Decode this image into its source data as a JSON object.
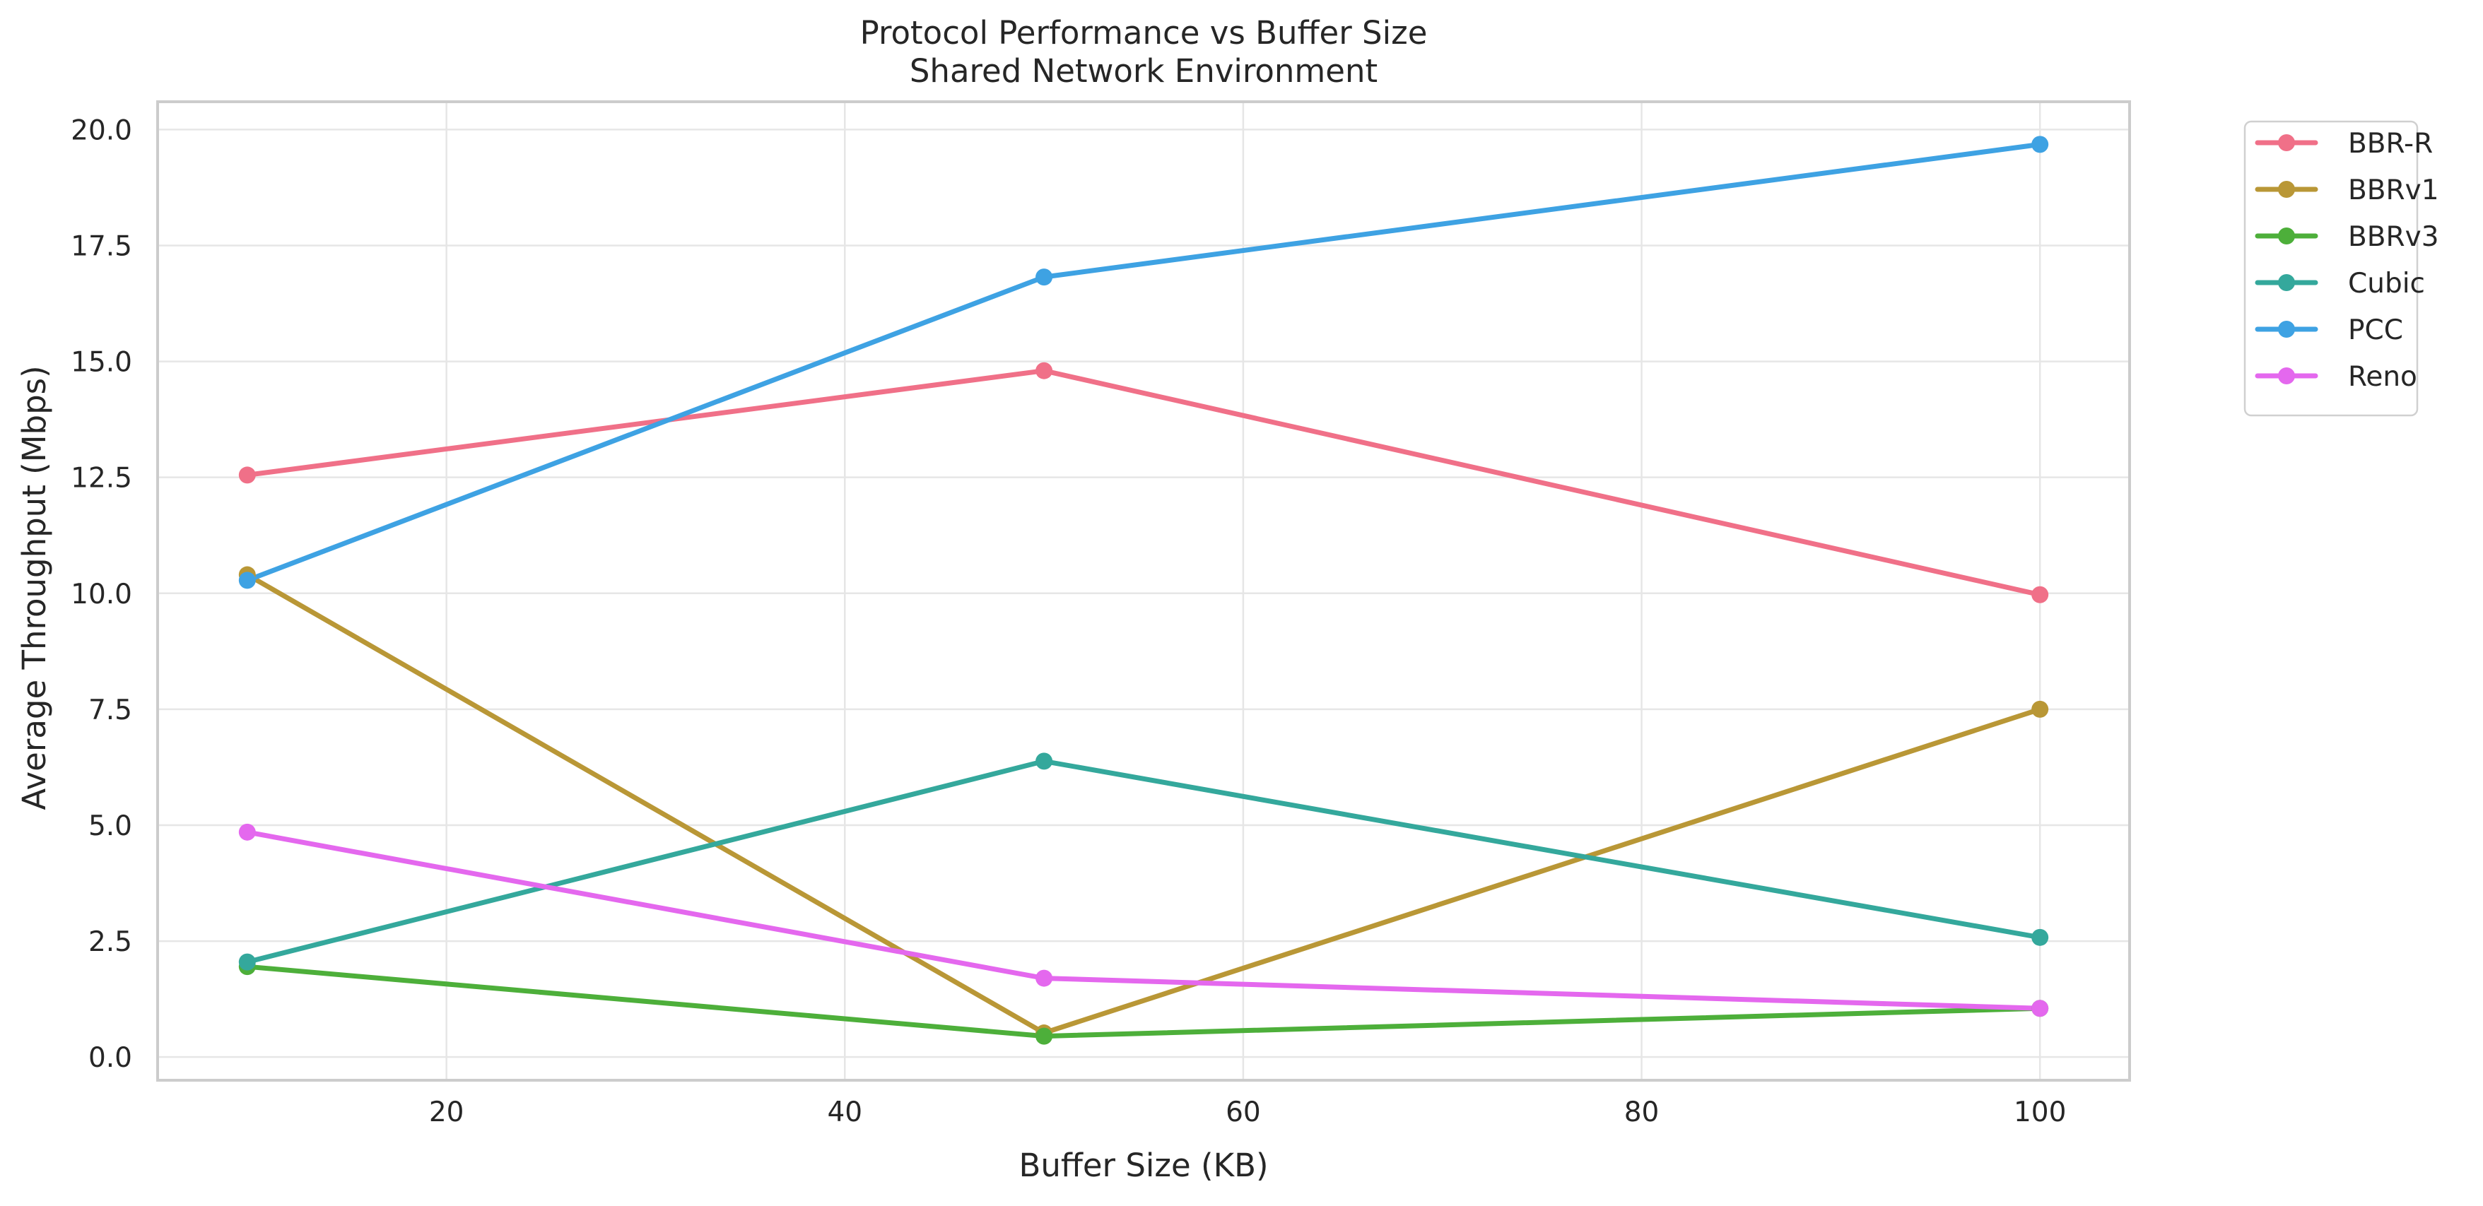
{
  "chart_data": {
    "type": "line",
    "title": "Protocol Performance vs Buffer Size",
    "subtitle": "Shared Network Environment",
    "xlabel": "Buffer Size (KB)",
    "ylabel": "Average Throughput (Mbps)",
    "xlim": [
      5.5,
      104.5
    ],
    "ylim": [
      -0.5,
      20.6
    ],
    "x_ticks": [
      20,
      40,
      60,
      80,
      100
    ],
    "y_ticks": [
      0.0,
      2.5,
      5.0,
      7.5,
      10.0,
      12.5,
      15.0,
      17.5,
      20.0
    ],
    "x_tick_labels": [
      "20",
      "40",
      "60",
      "80",
      "100"
    ],
    "y_tick_labels": [
      "0.0",
      "2.5",
      "5.0",
      "7.5",
      "10.0",
      "12.5",
      "15.0",
      "17.5",
      "20.0"
    ],
    "grid": true,
    "legend_position": "outside-top-right",
    "x": [
      10,
      50,
      100
    ],
    "series": [
      {
        "name": "BBR-R",
        "color": "#f07088",
        "values": [
          12.55,
          14.8,
          9.97
        ]
      },
      {
        "name": "BBRv1",
        "color": "#b99736",
        "values": [
          10.4,
          0.52,
          7.5
        ]
      },
      {
        "name": "BBRv3",
        "color": "#4daf3a",
        "values": [
          1.95,
          0.45,
          1.05
        ]
      },
      {
        "name": "Cubic",
        "color": "#34a89c",
        "values": [
          2.05,
          6.38,
          2.58
        ]
      },
      {
        "name": "PCC",
        "color": "#3ea2e3",
        "values": [
          10.28,
          16.82,
          19.68
        ]
      },
      {
        "name": "Reno",
        "color": "#e468ee",
        "values": [
          4.85,
          1.7,
          1.05
        ]
      }
    ]
  }
}
